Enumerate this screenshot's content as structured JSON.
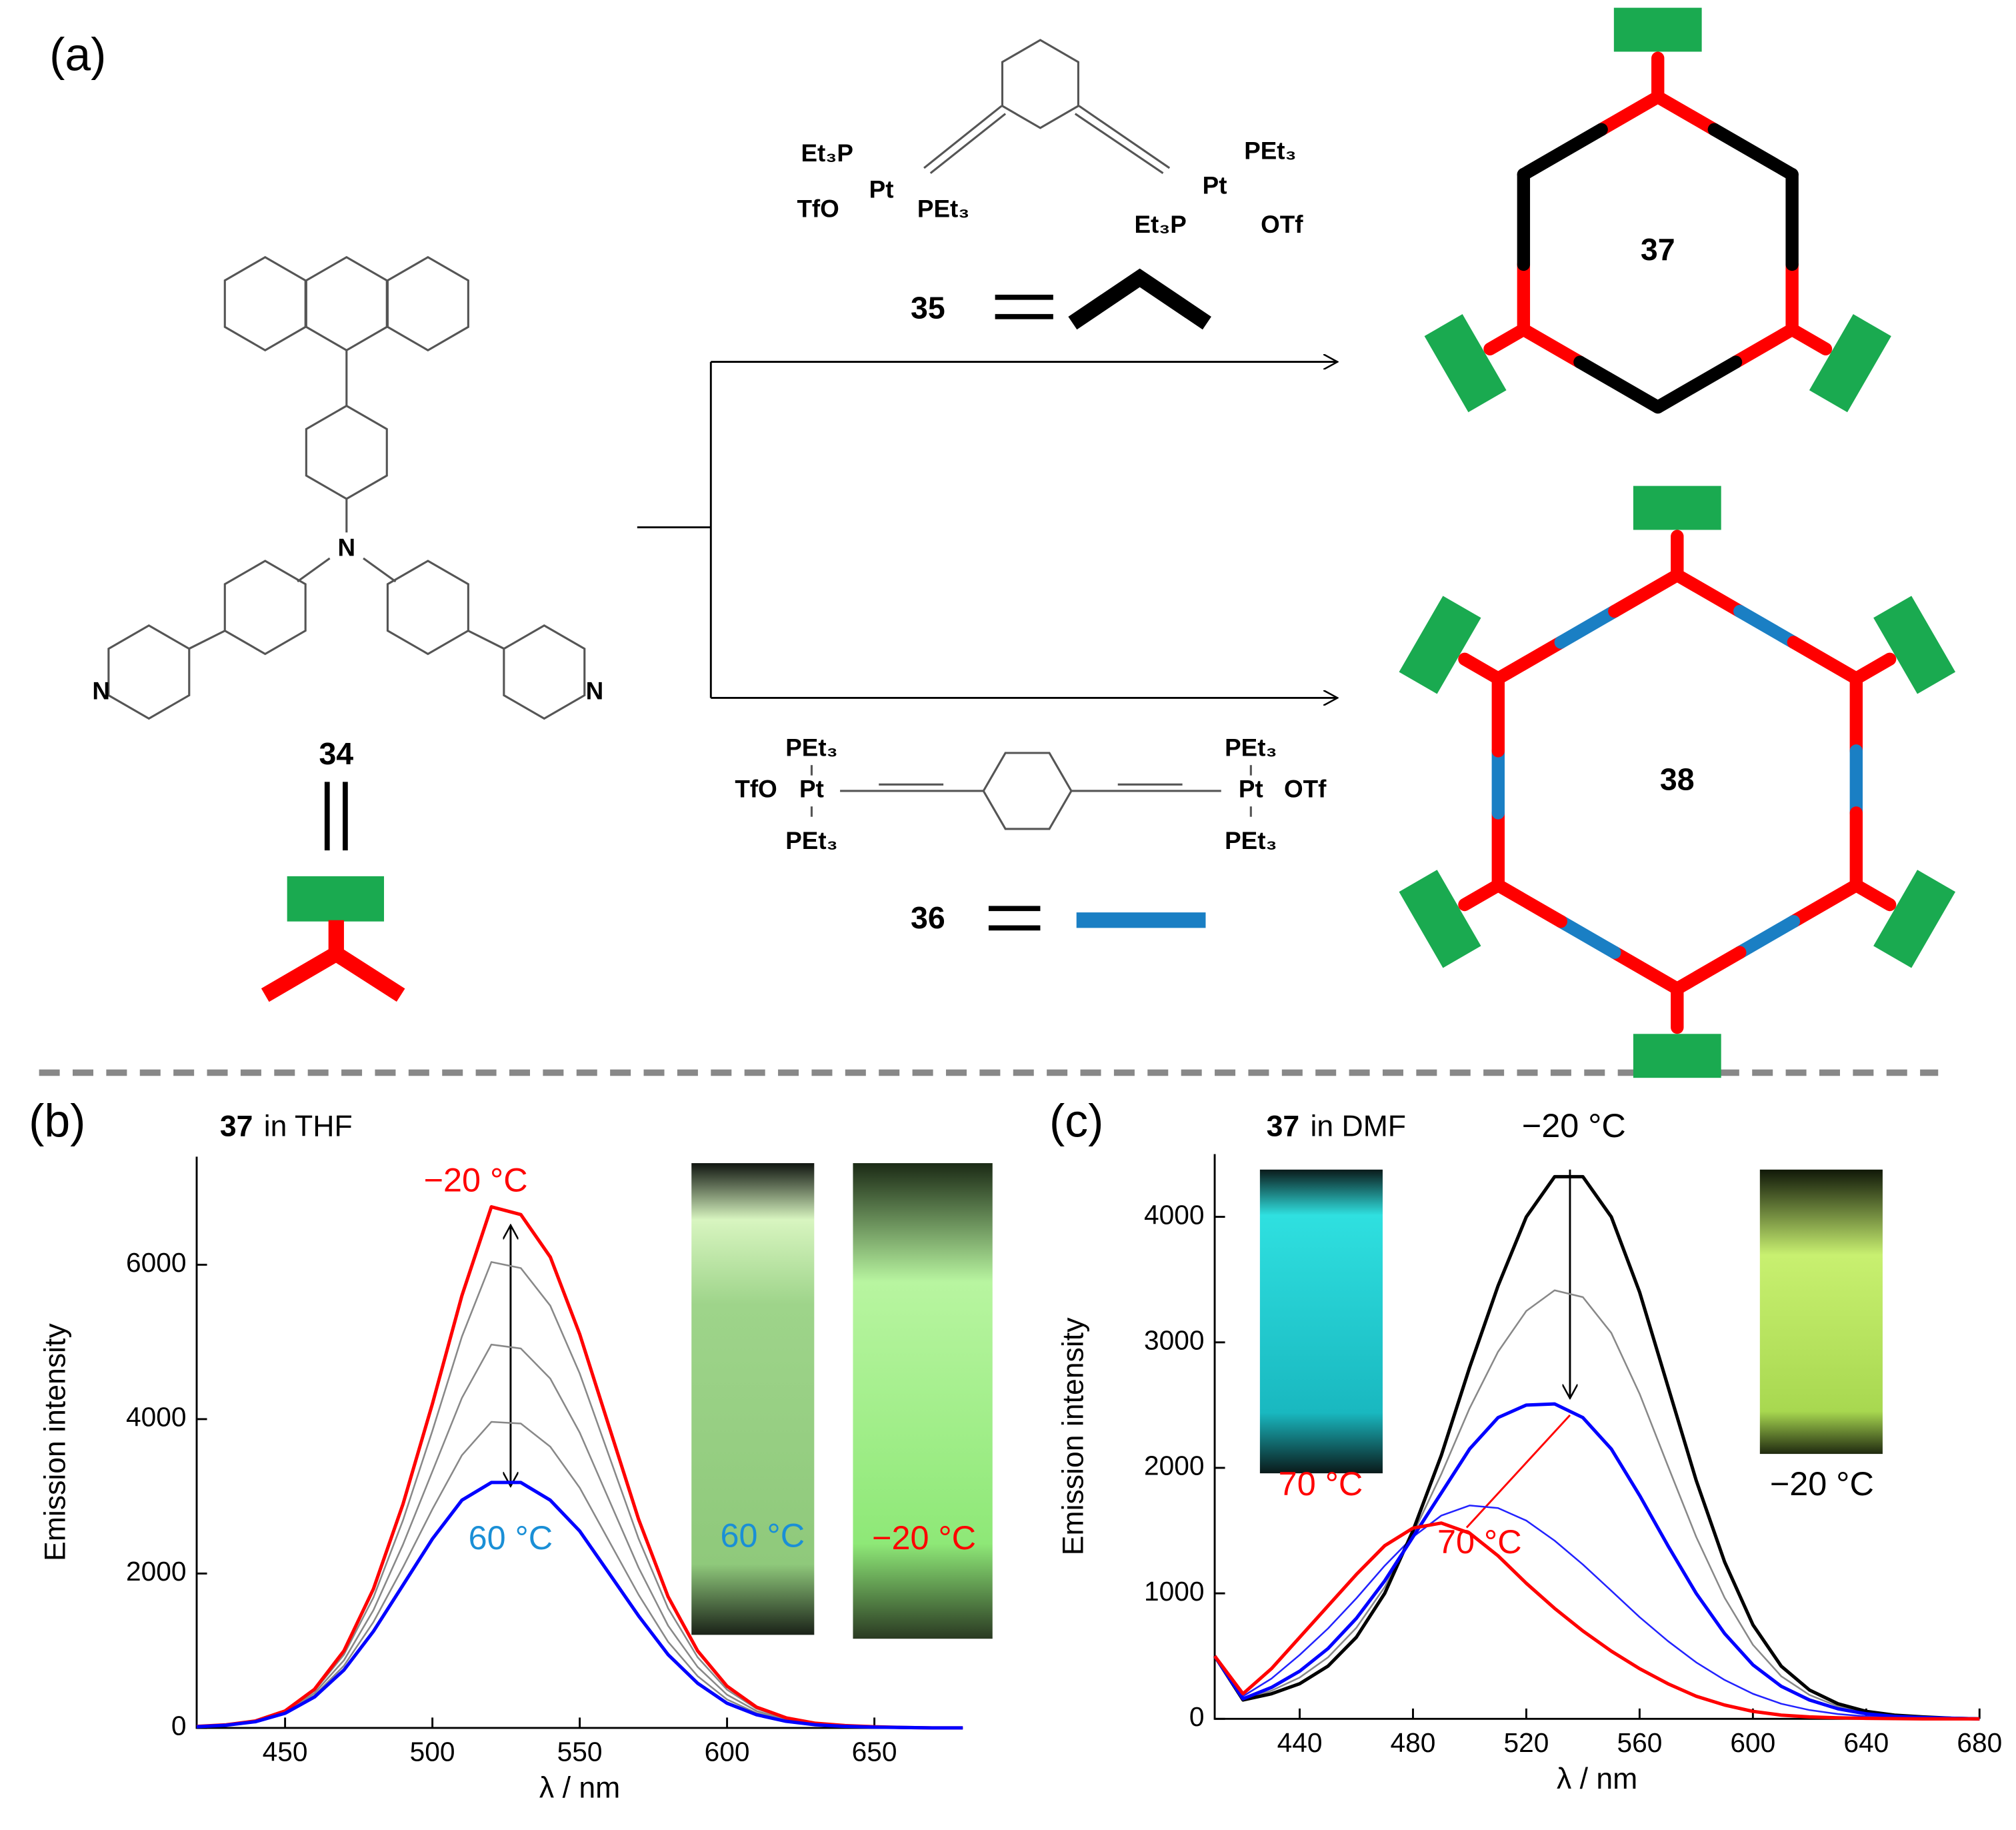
{
  "panel_labels": [
    "(a)",
    "(b)",
    "(c)"
  ],
  "scheme": {
    "label_34": "34",
    "label_35": "35",
    "label_36": "36",
    "label_37": "37",
    "label_38": "38",
    "atoms_34": [
      "N",
      "N",
      "N"
    ],
    "reagent_35": [
      "Et₃P",
      "Pt",
      "TfO",
      "PEt₃",
      "PEt₃",
      "Pt",
      "Et₃P",
      "OTf"
    ],
    "reagent_36": [
      "PEt₃",
      "TfO",
      "Pt",
      "PEt₃",
      "PEt₃",
      "Pt",
      "OTf",
      "PEt₃"
    ]
  },
  "chart_data": [
    {
      "type": "line",
      "label_compound": "37",
      "label_medium": "in THF",
      "x_label": "λ / nm",
      "y_label": "Emission intensity",
      "xlim": [
        420,
        680
      ],
      "ylim": [
        0,
        7400
      ],
      "xticks": [
        450,
        500,
        550,
        600,
        650
      ],
      "yticks": [
        0,
        2000,
        4000,
        6000
      ],
      "x": [
        420,
        430,
        440,
        450,
        460,
        470,
        480,
        490,
        500,
        510,
        520,
        530,
        540,
        550,
        560,
        570,
        580,
        590,
        600,
        610,
        620,
        630,
        640,
        650,
        660,
        670,
        680
      ],
      "series": [
        {
          "color": "#888888",
          "values": [
            19,
            39,
            88,
            214,
            480,
            950,
            1690,
            2690,
            3850,
            5070,
            6036,
            5956,
            5470,
            4590,
            3520,
            2450,
            1550,
            916,
            496,
            250,
            121,
            56,
            28,
            14,
            5,
            0,
            0
          ]
        },
        {
          "color": "#888888",
          "values": [
            18,
            38,
            85,
            205,
            450,
            875,
            1525,
            2375,
            3325,
            4275,
            4965,
            4915,
            4525,
            3825,
            2950,
            2075,
            1325,
            790,
            430,
            220,
            108,
            50,
            25,
            13,
            5,
            0,
            0
          ]
        },
        {
          "color": "#888888",
          "values": [
            16,
            36,
            82,
            197,
            422,
            805,
            1371,
            2081,
            2835,
            3533,
            3965,
            3943,
            3643,
            3111,
            2418,
            1725,
            1115,
            672,
            368,
            192,
            95,
            44,
            22,
            11,
            5,
            0,
            0
          ]
        },
        {
          "color": "#ff0000",
          "values": [
            20,
            40,
            90,
            220,
            500,
            1000,
            1800,
            2900,
            4200,
            5600,
            6750,
            6650,
            6100,
            5100,
            3900,
            2700,
            1700,
            1000,
            540,
            270,
            130,
            60,
            30,
            15,
            5,
            0,
            0
          ]
        },
        {
          "color": "#0000ff",
          "values": [
            15,
            35,
            80,
            190,
            400,
            750,
            1250,
            1850,
            2450,
            2950,
            3180,
            3180,
            2950,
            2550,
            2000,
            1450,
            950,
            580,
            320,
            170,
            85,
            40,
            20,
            10,
            5,
            0,
            0
          ]
        }
      ],
      "annotations": [
        {
          "text": "−20 °C",
          "color": "#ff0000"
        },
        {
          "text": "60 °C",
          "color": "#1a8fd6"
        },
        {
          "text": "60 °C",
          "color": "#1a8fd6"
        },
        {
          "text": "−20 °C",
          "color": "#ff0000"
        }
      ]
    },
    {
      "type": "line",
      "label_compound": "37",
      "label_medium": "in DMF",
      "x_label": "λ / nm",
      "y_label": "Emission intensity",
      "xlim": [
        410,
        680
      ],
      "ylim": [
        0,
        4500
      ],
      "xticks": [
        440,
        480,
        520,
        560,
        600,
        640,
        680
      ],
      "yticks": [
        0,
        1000,
        2000,
        3000,
        4000
      ],
      "x": [
        410,
        420,
        430,
        440,
        450,
        460,
        470,
        480,
        490,
        500,
        510,
        520,
        530,
        540,
        550,
        560,
        570,
        580,
        590,
        600,
        610,
        620,
        630,
        640,
        650,
        660,
        670,
        680
      ],
      "series": [
        {
          "color": "#888888",
          "values": [
            500,
            155,
            225,
            330,
            490,
            725,
            1050,
            1475,
            1950,
            2475,
            2925,
            3250,
            3415,
            3360,
            3075,
            2590,
            2015,
            1450,
            965,
            590,
            340,
            190,
            100,
            50,
            25,
            12,
            5,
            0
          ]
        },
        {
          "color": "#2222ff",
          "values": [
            500,
            180,
            320,
            510,
            720,
            960,
            1220,
            1450,
            1620,
            1700,
            1680,
            1580,
            1420,
            1230,
            1020,
            810,
            620,
            450,
            310,
            200,
            120,
            70,
            38,
            20,
            10,
            5,
            2,
            0
          ]
        },
        {
          "color": "#000000",
          "values": [
            500,
            150,
            200,
            280,
            420,
            650,
            1000,
            1500,
            2100,
            2800,
            3450,
            4000,
            4320,
            4320,
            4000,
            3400,
            2650,
            1900,
            1250,
            750,
            420,
            230,
            120,
            60,
            30,
            15,
            5,
            0
          ]
        },
        {
          "color": "#0000ff",
          "values": [
            500,
            160,
            250,
            380,
            560,
            800,
            1100,
            1450,
            1800,
            2150,
            2400,
            2500,
            2510,
            2400,
            2150,
            1780,
            1380,
            1000,
            680,
            430,
            260,
            150,
            80,
            40,
            20,
            10,
            5,
            0
          ]
        },
        {
          "color": "#ff0000",
          "values": [
            500,
            200,
            400,
            650,
            900,
            1150,
            1380,
            1520,
            1560,
            1480,
            1300,
            1080,
            880,
            700,
            540,
            400,
            280,
            180,
            110,
            60,
            30,
            15,
            8,
            4,
            2,
            0,
            0,
            0
          ]
        }
      ],
      "annotations": [
        {
          "text": "−20 °C",
          "color": "#000000"
        },
        {
          "text": "70 °C",
          "color": "#ff0000"
        },
        {
          "text": "70 °C",
          "color": "#ff0000"
        },
        {
          "text": "−20 °C",
          "color": "#000000"
        }
      ]
    }
  ]
}
